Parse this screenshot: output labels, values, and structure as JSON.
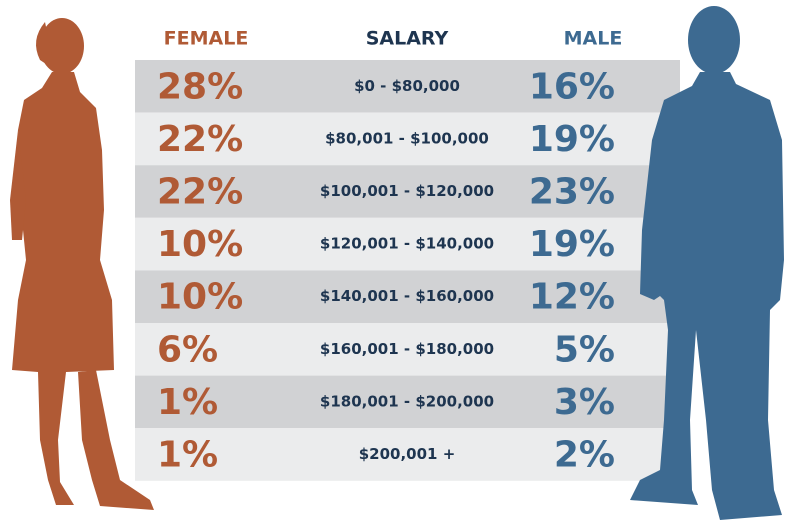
{
  "table": {
    "header": {
      "female": "FEMALE",
      "salary": "SALARY",
      "male": "MALE"
    },
    "rows": [
      {
        "female": "28%",
        "salary": "$0 - $80,000",
        "male": "16%"
      },
      {
        "female": "22%",
        "salary": "$80,001 - $100,000",
        "male": "19%"
      },
      {
        "female": "22%",
        "salary": "$100,001 - $120,000",
        "male": "23%"
      },
      {
        "female": "10%",
        "salary": "$120,001 - $140,000",
        "male": "19%"
      },
      {
        "female": "10%",
        "salary": "$140,001 - $160,000",
        "male": "12%"
      },
      {
        "female": "6%",
        "salary": "$160,001 - $180,000",
        "male": "5%"
      },
      {
        "female": "1%",
        "salary": "$180,001 - $200,000",
        "male": "3%"
      },
      {
        "female": "1%",
        "salary": "$200,001 +",
        "male": "2%"
      }
    ]
  }
}
